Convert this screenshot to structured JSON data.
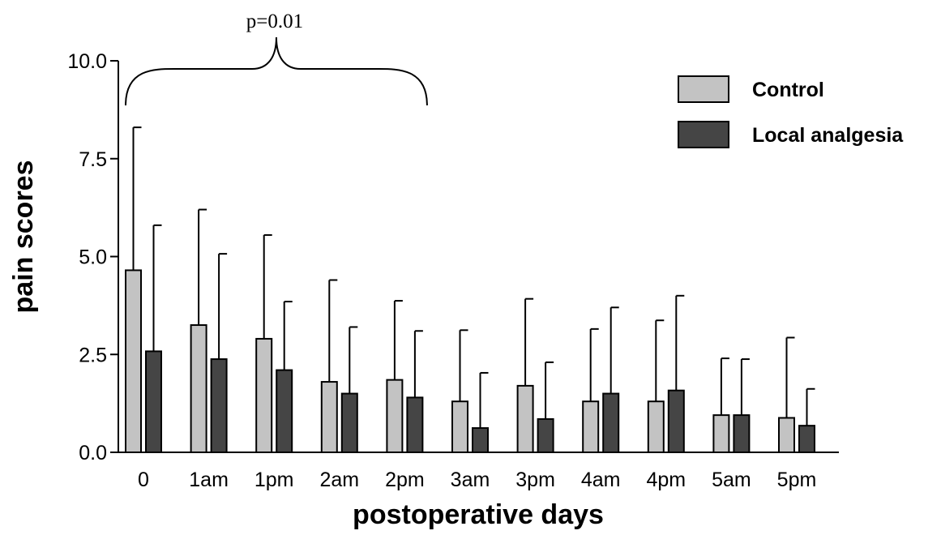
{
  "chart_data": {
    "type": "bar",
    "xlabel": "postoperative days",
    "ylabel": "pain scores",
    "ylim": [
      0,
      10
    ],
    "yticks": [
      "0.0",
      "2.5",
      "5.0",
      "7.5",
      "10.0"
    ],
    "categories": [
      "0",
      "1am",
      "1pm",
      "2am",
      "2pm",
      "3am",
      "3pm",
      "4am",
      "4pm",
      "5am",
      "5pm"
    ],
    "series": [
      {
        "name": "Control",
        "color": "#c3c3c3",
        "values": [
          4.65,
          3.25,
          2.9,
          1.8,
          1.85,
          1.3,
          1.7,
          1.3,
          1.3,
          0.95,
          0.88
        ],
        "error_upper": [
          8.3,
          6.2,
          5.55,
          4.4,
          3.87,
          3.12,
          3.92,
          3.15,
          3.37,
          2.4,
          2.93
        ]
      },
      {
        "name": "Local analgesia",
        "color": "#454545",
        "values": [
          2.58,
          2.38,
          2.1,
          1.5,
          1.4,
          0.62,
          0.85,
          1.5,
          1.58,
          0.95,
          0.68
        ],
        "error_upper": [
          5.8,
          5.07,
          3.85,
          3.2,
          3.1,
          2.03,
          2.3,
          3.7,
          4.0,
          2.38,
          1.62
        ]
      }
    ],
    "annotations": [
      {
        "text": "p=0.01",
        "from_category": "0",
        "to_category": "2pm"
      }
    ],
    "legend_position": "top-right",
    "grid": false
  }
}
